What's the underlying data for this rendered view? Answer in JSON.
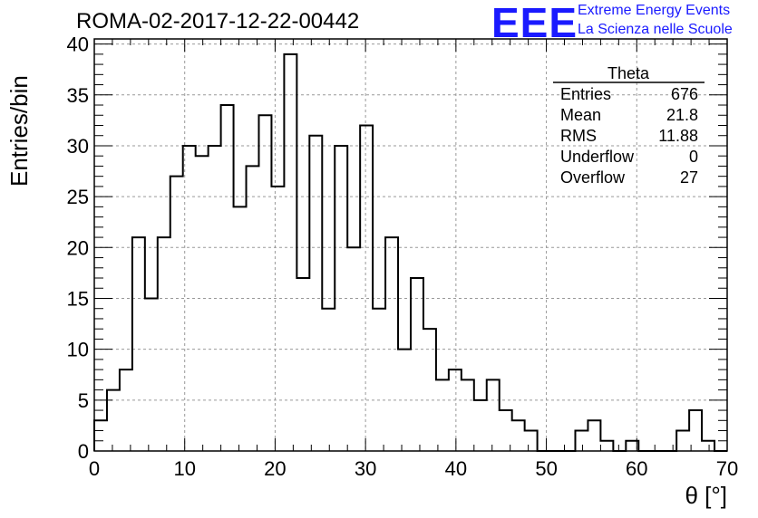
{
  "header": {
    "title": "ROMA-02-2017-12-22-00442",
    "logo_text": "EEE",
    "logo_line1": "Extreme Energy Events",
    "logo_line2": "La Scienza nelle Scuole",
    "logo_color": "#1a1aff"
  },
  "stats": {
    "title": "Theta",
    "rows": [
      {
        "label": "Entries",
        "value": "676"
      },
      {
        "label": "Mean",
        "value": "21.8"
      },
      {
        "label": "RMS",
        "value": "11.88"
      },
      {
        "label": "Underflow",
        "value": "0"
      },
      {
        "label": "Overflow",
        "value": "27"
      }
    ]
  },
  "chart_data": {
    "type": "bar",
    "style": "step-histogram",
    "xlabel": "θ [°]",
    "ylabel": "Entries/bin",
    "xlim": [
      0,
      70
    ],
    "ylim": [
      0,
      40.5
    ],
    "bin_width": 1.4,
    "x_ticks": [
      0,
      10,
      20,
      30,
      40,
      50,
      60,
      70
    ],
    "y_ticks": [
      0,
      5,
      10,
      15,
      20,
      25,
      30,
      35,
      40
    ],
    "grid": true,
    "values": [
      3,
      6,
      8,
      21,
      15,
      21,
      27,
      30,
      29,
      30,
      34,
      24,
      28,
      33,
      26,
      39,
      17,
      31,
      14,
      30,
      20,
      32,
      14,
      21,
      10,
      17,
      12,
      7,
      8,
      7,
      5,
      7,
      4,
      3,
      2,
      0,
      0,
      0,
      2,
      3,
      1,
      0,
      1,
      0,
      0,
      0,
      2,
      4,
      1,
      0
    ]
  }
}
